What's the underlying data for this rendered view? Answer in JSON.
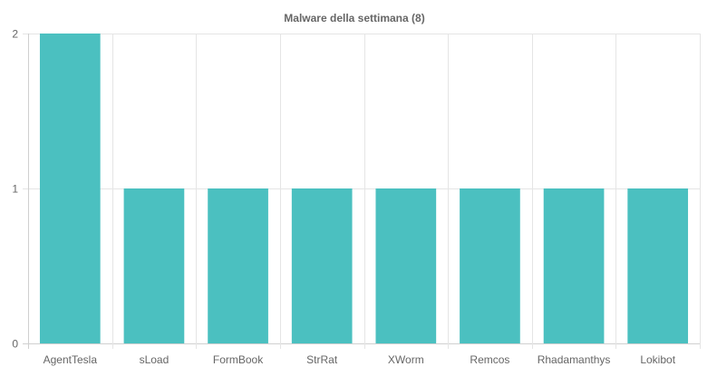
{
  "chart_data": {
    "type": "bar",
    "title": "Malware della settimana (8)",
    "xlabel": "",
    "ylabel": "",
    "categories": [
      "AgentTesla",
      "sLoad",
      "FormBook",
      "StrRat",
      "XWorm",
      "Remcos",
      "Rhadamanthys",
      "Lokibot"
    ],
    "values": [
      2,
      1,
      1,
      1,
      1,
      1,
      1,
      1
    ],
    "ylim": [
      0,
      2
    ],
    "yticks": [
      "0",
      "1",
      "2"
    ],
    "grid": true,
    "legend": "none",
    "bar_color": "#4bc0c0"
  }
}
